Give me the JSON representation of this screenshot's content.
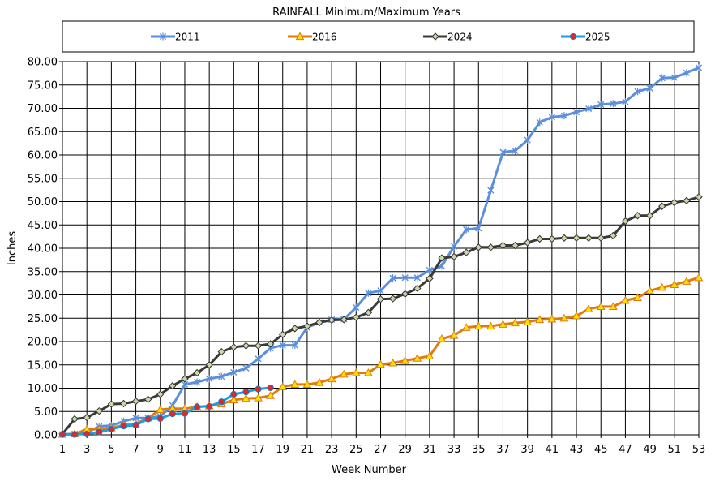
{
  "chart_data": {
    "type": "line",
    "title": "RAINFALL Minimum/Maximum Years",
    "xlabel": "Week Number",
    "ylabel": "Inches",
    "xlim": [
      1,
      53
    ],
    "ylim": [
      0,
      80
    ],
    "xticks": [
      1,
      3,
      5,
      7,
      9,
      11,
      13,
      15,
      17,
      19,
      21,
      23,
      25,
      27,
      29,
      31,
      33,
      35,
      37,
      39,
      41,
      43,
      45,
      47,
      49,
      51,
      53
    ],
    "xtick_labels": [
      "1",
      "3",
      "5",
      "7",
      "9",
      "11",
      "13",
      "15",
      "17",
      "19",
      "21",
      "23",
      "25",
      "27",
      "29",
      "31",
      "33",
      "35",
      "37",
      "39",
      "41",
      "43",
      "45",
      "47",
      "49",
      "51",
      "53"
    ],
    "yticks": [
      0,
      5,
      10,
      15,
      20,
      25,
      30,
      35,
      40,
      45,
      50,
      55,
      60,
      65,
      70,
      75,
      80
    ],
    "ytick_labels": [
      "0.00",
      "5.00",
      "10.00",
      "15.00",
      "20.00",
      "25.00",
      "30.00",
      "35.00",
      "40.00",
      "45.00",
      "50.00",
      "55.00",
      "60.00",
      "65.00",
      "70.00",
      "75.00",
      "80.00"
    ],
    "grid": true,
    "legend_position": "top",
    "series": [
      {
        "name": "2011",
        "color": "#5b8fdc",
        "marker": "star",
        "x": [
          1,
          2,
          3,
          4,
          5,
          6,
          7,
          8,
          9,
          10,
          11,
          12,
          13,
          14,
          15,
          16,
          17,
          18,
          19,
          20,
          21,
          22,
          23,
          24,
          25,
          26,
          27,
          28,
          29,
          30,
          31,
          32,
          33,
          34,
          35,
          36,
          37,
          38,
          39,
          40,
          41,
          42,
          43,
          44,
          45,
          46,
          47,
          48,
          49,
          50,
          51,
          52,
          53
        ],
        "values": [
          0.1,
          0.2,
          0.5,
          1.8,
          2.0,
          2.9,
          3.6,
          3.6,
          4.0,
          6.3,
          10.8,
          11.3,
          12.0,
          12.5,
          13.4,
          14.3,
          16.3,
          18.6,
          19.2,
          19.2,
          23.0,
          24.1,
          24.7,
          24.8,
          27.3,
          30.4,
          30.9,
          33.6,
          33.7,
          33.7,
          35.3,
          36.2,
          40.4,
          44.0,
          44.3,
          52.4,
          60.6,
          60.9,
          63.2,
          67.0,
          68.1,
          68.4,
          69.2,
          69.9,
          70.8,
          71.0,
          71.4,
          73.6,
          74.3,
          76.5,
          76.6,
          77.6,
          78.7
        ]
      },
      {
        "name": "2016",
        "color": "#e07b10",
        "marker": "triangle",
        "x": [
          1,
          2,
          3,
          4,
          5,
          6,
          7,
          8,
          9,
          10,
          11,
          12,
          13,
          14,
          15,
          16,
          17,
          18,
          19,
          20,
          21,
          22,
          23,
          24,
          25,
          26,
          27,
          28,
          29,
          30,
          31,
          32,
          33,
          34,
          35,
          36,
          37,
          38,
          39,
          40,
          41,
          42,
          43,
          44,
          45,
          46,
          47,
          48,
          49,
          50,
          51,
          52,
          53
        ],
        "values": [
          0.1,
          0.2,
          1.2,
          1.2,
          1.5,
          2.1,
          2.4,
          3.6,
          5.4,
          5.6,
          5.6,
          6.0,
          6.2,
          6.6,
          7.5,
          7.8,
          7.9,
          8.4,
          10.3,
          10.8,
          10.8,
          11.2,
          12.0,
          13.0,
          13.3,
          13.3,
          15.1,
          15.4,
          15.9,
          16.4,
          16.9,
          20.6,
          21.3,
          23.0,
          23.3,
          23.3,
          23.7,
          24.0,
          24.2,
          24.7,
          24.8,
          25.0,
          25.5,
          27.0,
          27.5,
          27.5,
          28.8,
          29.4,
          30.9,
          31.6,
          32.2,
          32.9,
          33.7
        ]
      },
      {
        "name": "2024",
        "color": "#3a3a3a",
        "marker": "diamond",
        "x": [
          1,
          2,
          3,
          4,
          5,
          6,
          7,
          8,
          9,
          10,
          11,
          12,
          13,
          14,
          15,
          16,
          17,
          18,
          19,
          20,
          21,
          22,
          23,
          24,
          25,
          26,
          27,
          28,
          29,
          30,
          31,
          32,
          33,
          34,
          35,
          36,
          37,
          38,
          39,
          40,
          41,
          42,
          43,
          44,
          45,
          46,
          47,
          48,
          49,
          50,
          51,
          52,
          53
        ],
        "values": [
          0.2,
          3.4,
          3.7,
          5.1,
          6.6,
          6.7,
          7.2,
          7.6,
          8.7,
          10.5,
          12.0,
          13.3,
          15.0,
          17.8,
          18.8,
          19.1,
          19.1,
          19.5,
          21.5,
          22.8,
          23.3,
          24.1,
          24.6,
          24.7,
          25.2,
          26.2,
          29.1,
          29.2,
          30.2,
          31.4,
          33.5,
          37.9,
          38.2,
          39.1,
          40.2,
          40.2,
          40.6,
          40.6,
          41.2,
          42.0,
          42.0,
          42.2,
          42.2,
          42.2,
          42.2,
          42.7,
          45.8,
          47.0,
          47.0,
          49.0,
          49.8,
          50.2,
          51.0
        ]
      },
      {
        "name": "2025",
        "color": "#1aa0e0",
        "marker": "circle",
        "x": [
          1,
          2,
          3,
          4,
          5,
          6,
          7,
          8,
          9,
          10,
          11,
          12,
          13,
          14,
          15,
          16,
          17,
          18
        ],
        "values": [
          0.1,
          0.1,
          0.2,
          0.6,
          1.2,
          1.9,
          2.1,
          3.4,
          3.5,
          4.5,
          4.6,
          6.0,
          6.1,
          7.1,
          8.7,
          9.2,
          9.8,
          10.1
        ]
      }
    ]
  }
}
